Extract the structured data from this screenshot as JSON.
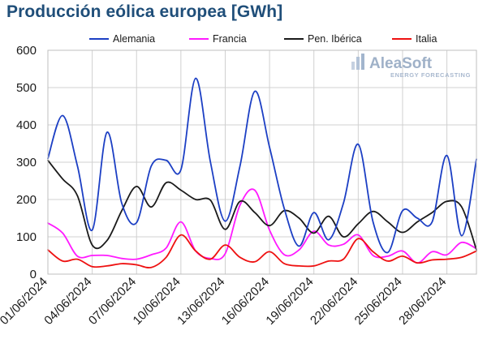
{
  "title": "Producción eólica europea [GWh]",
  "logo": {
    "name": "AleaSoft",
    "tagline": "ENERGY FORECASTING"
  },
  "chart_data": {
    "type": "line",
    "title": "Producción eólica europea [GWh]",
    "xlabel": "",
    "ylabel": "",
    "ylim": [
      0,
      600
    ],
    "yticks": [
      0,
      100,
      200,
      300,
      400,
      500,
      600
    ],
    "x": [
      "01/06/2024",
      "02/06/2024",
      "03/06/2024",
      "04/06/2024",
      "05/06/2024",
      "06/06/2024",
      "07/06/2024",
      "08/06/2024",
      "09/06/2024",
      "10/06/2024",
      "11/06/2024",
      "12/06/2024",
      "13/06/2024",
      "14/06/2024",
      "15/06/2024",
      "16/06/2024",
      "17/06/2024",
      "18/06/2024",
      "19/06/2024",
      "20/06/2024",
      "21/06/2024",
      "22/06/2024",
      "23/06/2024",
      "24/06/2024",
      "25/06/2024",
      "26/06/2024",
      "27/06/2024",
      "28/06/2024",
      "29/06/2024",
      "30/06/2024"
    ],
    "xtick_labels": [
      "01/06/2024",
      "04/06/2024",
      "07/06/2024",
      "10/06/2024",
      "13/06/2024",
      "16/06/2024",
      "19/06/2024",
      "22/06/2024",
      "25/06/2024",
      "28/06/2024"
    ],
    "grid": true,
    "legend_position": "top",
    "series": [
      {
        "name": "Alemania",
        "color": "#1c3fc4",
        "values": [
          310,
          425,
          290,
          118,
          380,
          190,
          138,
          290,
          305,
          280,
          525,
          300,
          142,
          290,
          490,
          340,
          175,
          75,
          165,
          92,
          190,
          348,
          140,
          58,
          170,
          150,
          140,
          318,
          103,
          308
        ]
      },
      {
        "name": "Francia",
        "color": "#ff1aff",
        "values": [
          137,
          110,
          48,
          50,
          50,
          42,
          40,
          52,
          70,
          140,
          62,
          42,
          55,
          185,
          225,
          118,
          52,
          65,
          115,
          78,
          80,
          105,
          50,
          48,
          62,
          30,
          60,
          52,
          85,
          68
        ]
      },
      {
        "name": "Pen. Ibérica",
        "color": "#1a1a1a",
        "values": [
          305,
          255,
          210,
          78,
          90,
          170,
          235,
          180,
          245,
          225,
          200,
          198,
          120,
          195,
          165,
          130,
          170,
          150,
          110,
          155,
          100,
          135,
          168,
          140,
          112,
          140,
          165,
          195,
          180,
          65
        ]
      },
      {
        "name": "Italia",
        "color": "#ee1111",
        "values": [
          65,
          35,
          40,
          20,
          22,
          28,
          25,
          18,
          45,
          105,
          62,
          40,
          78,
          45,
          33,
          60,
          28,
          22,
          22,
          35,
          40,
          95,
          60,
          35,
          48,
          30,
          38,
          40,
          45,
          62
        ]
      }
    ]
  }
}
